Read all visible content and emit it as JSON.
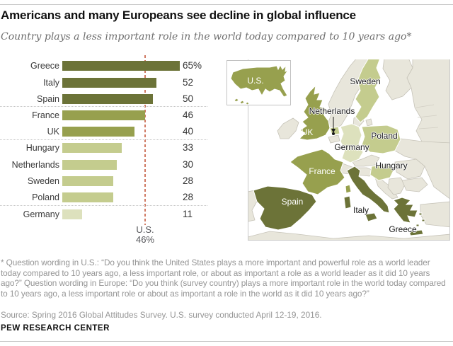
{
  "header": {
    "title": "Americans and many Europeans see decline in global influence",
    "subtitle": "Country plays a less important role in the world today compared to 10 years ago*"
  },
  "palette": {
    "dark": "#6C7338",
    "medium": "#97A04E",
    "light": "#C4CC8E",
    "lightest": "#DDE1BD",
    "nonsurveyed": "#E8E6DB",
    "refline": "#D07A64"
  },
  "chart_data": {
    "type": "bar",
    "orientation": "horizontal",
    "title": "Country plays a less important role in the world today compared to 10 years ago",
    "unit": "percent",
    "xlim": [
      0,
      65
    ],
    "categories": [
      "Greece",
      "Italy",
      "Spain",
      "France",
      "UK",
      "Hungary",
      "Netherlands",
      "Sweden",
      "Poland",
      "Germany"
    ],
    "values": [
      65,
      52,
      50,
      46,
      40,
      33,
      30,
      28,
      28,
      11
    ],
    "rows": [
      {
        "country": "Greece",
        "value": 65,
        "display": "65%",
        "tier": "dark"
      },
      {
        "country": "Italy",
        "value": 52,
        "display": "52",
        "tier": "dark"
      },
      {
        "country": "Spain",
        "value": 50,
        "display": "50",
        "tier": "dark"
      },
      {
        "country": "France",
        "value": 46,
        "display": "46",
        "tier": "medium"
      },
      {
        "country": "UK",
        "value": 40,
        "display": "40",
        "tier": "medium"
      },
      {
        "country": "Hungary",
        "value": 33,
        "display": "33",
        "tier": "light"
      },
      {
        "country": "Netherlands",
        "value": 30,
        "display": "30",
        "tier": "light"
      },
      {
        "country": "Sweden",
        "value": 28,
        "display": "28",
        "tier": "light"
      },
      {
        "country": "Poland",
        "value": 28,
        "display": "28",
        "tier": "light"
      },
      {
        "country": "Germany",
        "value": 11,
        "display": "11",
        "tier": "lightest"
      }
    ],
    "reference_line": {
      "value": 46,
      "label_line1": "U.S.",
      "label_line2": "46%"
    },
    "legend_position": "none",
    "grid": false
  },
  "map": {
    "inset_label": "U.S.",
    "labels": [
      {
        "id": "us",
        "text": "U.S."
      },
      {
        "id": "sweden",
        "text": "Sweden"
      },
      {
        "id": "netherlands",
        "text": "Netherlands"
      },
      {
        "id": "uk",
        "text": "UK"
      },
      {
        "id": "poland",
        "text": "Poland"
      },
      {
        "id": "germany",
        "text": "Germany"
      },
      {
        "id": "hungary",
        "text": "Hungary"
      },
      {
        "id": "france",
        "text": "France"
      },
      {
        "id": "spain",
        "text": "Spain"
      },
      {
        "id": "italy",
        "text": "Italy"
      },
      {
        "id": "greece",
        "text": "Greece"
      }
    ]
  },
  "footer": {
    "footnote": "* Question wording in U.S.: “Do you think the United States plays a more important and powerful role as a world leader today compared to 10 years ago, a less important role, or about as important a role as a world leader as it did 10 years ago?” Question wording in Europe: “Do you think (survey country) plays a more important role in the world today compared to 10 years ago, a less important role or about as important a role in the world as it did 10 years ago?”",
    "source": "Source: Spring 2016 Global Attitudes Survey. U.S. survey conducted April 12-19, 2016.",
    "brand": "PEW RESEARCH CENTER"
  }
}
